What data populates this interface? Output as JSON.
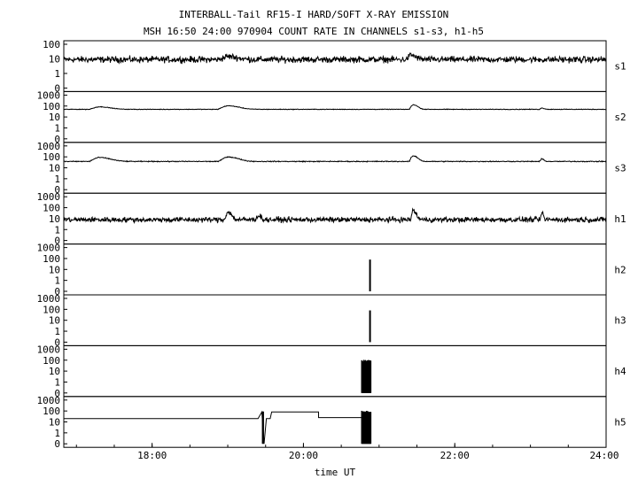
{
  "chart_data": {
    "type": "line",
    "title": "INTERBALL-Tail RF15-I HARD/SOFT X-RAY EMISSION",
    "subtitle": "MSH 16:50 24:00 970904  COUNT RATE IN CHANNELS s1-s3, h1-h5",
    "xlabel": "time UT",
    "x_range_hours": [
      16.833,
      24.0
    ],
    "x_ticks": [
      {
        "value": 18,
        "label": "18:00"
      },
      {
        "value": 20,
        "label": "20:00"
      },
      {
        "value": 22,
        "label": "22:00"
      },
      {
        "value": 24,
        "label": "24:00"
      }
    ],
    "y_scale": "log",
    "grid": false,
    "line_color": "#000000",
    "panels": [
      {
        "name": "s1",
        "y_ticks": [
          "0",
          "1",
          "10",
          "100"
        ],
        "ymax": 100,
        "base": 9,
        "noise": 0.32,
        "features": [
          {
            "t": 19.0,
            "amp": 1.6,
            "w": 0.18
          },
          {
            "t": 21.42,
            "amp": 2.0,
            "w": 0.09
          }
        ]
      },
      {
        "name": "s2",
        "y_ticks": [
          "0",
          "1",
          "10",
          "100",
          "1000"
        ],
        "ymax": 1000,
        "base": 50,
        "noise": 0.04,
        "features": [
          {
            "t": 17.3,
            "amp": 1.7,
            "w": 0.2
          },
          {
            "t": 19.0,
            "amp": 2.1,
            "w": 0.2
          },
          {
            "t": 21.45,
            "amp": 2.6,
            "w": 0.08
          },
          {
            "t": 23.15,
            "amp": 1.3,
            "w": 0.05
          }
        ]
      },
      {
        "name": "s3",
        "y_ticks": [
          "0",
          "1",
          "10",
          "100",
          "1000"
        ],
        "ymax": 1000,
        "base": 38,
        "noise": 0.06,
        "features": [
          {
            "t": 17.3,
            "amp": 2.3,
            "w": 0.2
          },
          {
            "t": 19.0,
            "amp": 2.6,
            "w": 0.18
          },
          {
            "t": 21.45,
            "amp": 3.2,
            "w": 0.08
          },
          {
            "t": 23.15,
            "amp": 1.7,
            "w": 0.04
          }
        ]
      },
      {
        "name": "h1",
        "y_ticks": [
          "0",
          "1",
          "10",
          "100",
          "1000"
        ],
        "ymax": 1000,
        "base": 8,
        "noise": 0.35,
        "features": [
          {
            "t": 19.0,
            "amp": 5.0,
            "w": 0.06
          },
          {
            "t": 19.4,
            "amp": 2.5,
            "w": 0.05
          },
          {
            "t": 21.45,
            "amp": 6.5,
            "w": 0.05
          },
          {
            "t": 23.15,
            "amp": 3.5,
            "w": 0.03
          }
        ]
      },
      {
        "name": "h2",
        "y_ticks": [
          "0",
          "1",
          "10",
          "100",
          "1000"
        ],
        "ymax": 1000,
        "spikes": [
          {
            "t": 20.88,
            "value": 80
          }
        ]
      },
      {
        "name": "h3",
        "y_ticks": [
          "0",
          "1",
          "10",
          "100",
          "1000"
        ],
        "ymax": 1000,
        "spikes": [
          {
            "t": 20.88,
            "value": 80
          }
        ]
      },
      {
        "name": "h4",
        "y_ticks": [
          "0",
          "1",
          "10",
          "100",
          "1000"
        ],
        "ymax": 1000,
        "burst": {
          "t_start": 20.77,
          "t_end": 20.89,
          "value": 90
        }
      },
      {
        "name": "h5",
        "y_ticks": [
          "0",
          "1",
          "10",
          "100",
          "1000"
        ],
        "ymax": 1000,
        "burst": {
          "t_start": 20.77,
          "t_end": 20.89,
          "value": 90
        },
        "steps": [
          {
            "t": 16.833,
            "value": 20
          },
          {
            "t": 19.4,
            "value": 20
          },
          {
            "t": 19.45,
            "value": 80
          },
          {
            "t": 19.48,
            "value": 0
          },
          {
            "t": 19.51,
            "value": 20
          },
          {
            "t": 19.56,
            "value": 20
          },
          {
            "t": 19.58,
            "value": 80
          },
          {
            "t": 20.2,
            "value": 80
          },
          {
            "t": 20.2,
            "value": 25
          },
          {
            "t": 20.77,
            "value": 25
          }
        ]
      }
    ]
  }
}
